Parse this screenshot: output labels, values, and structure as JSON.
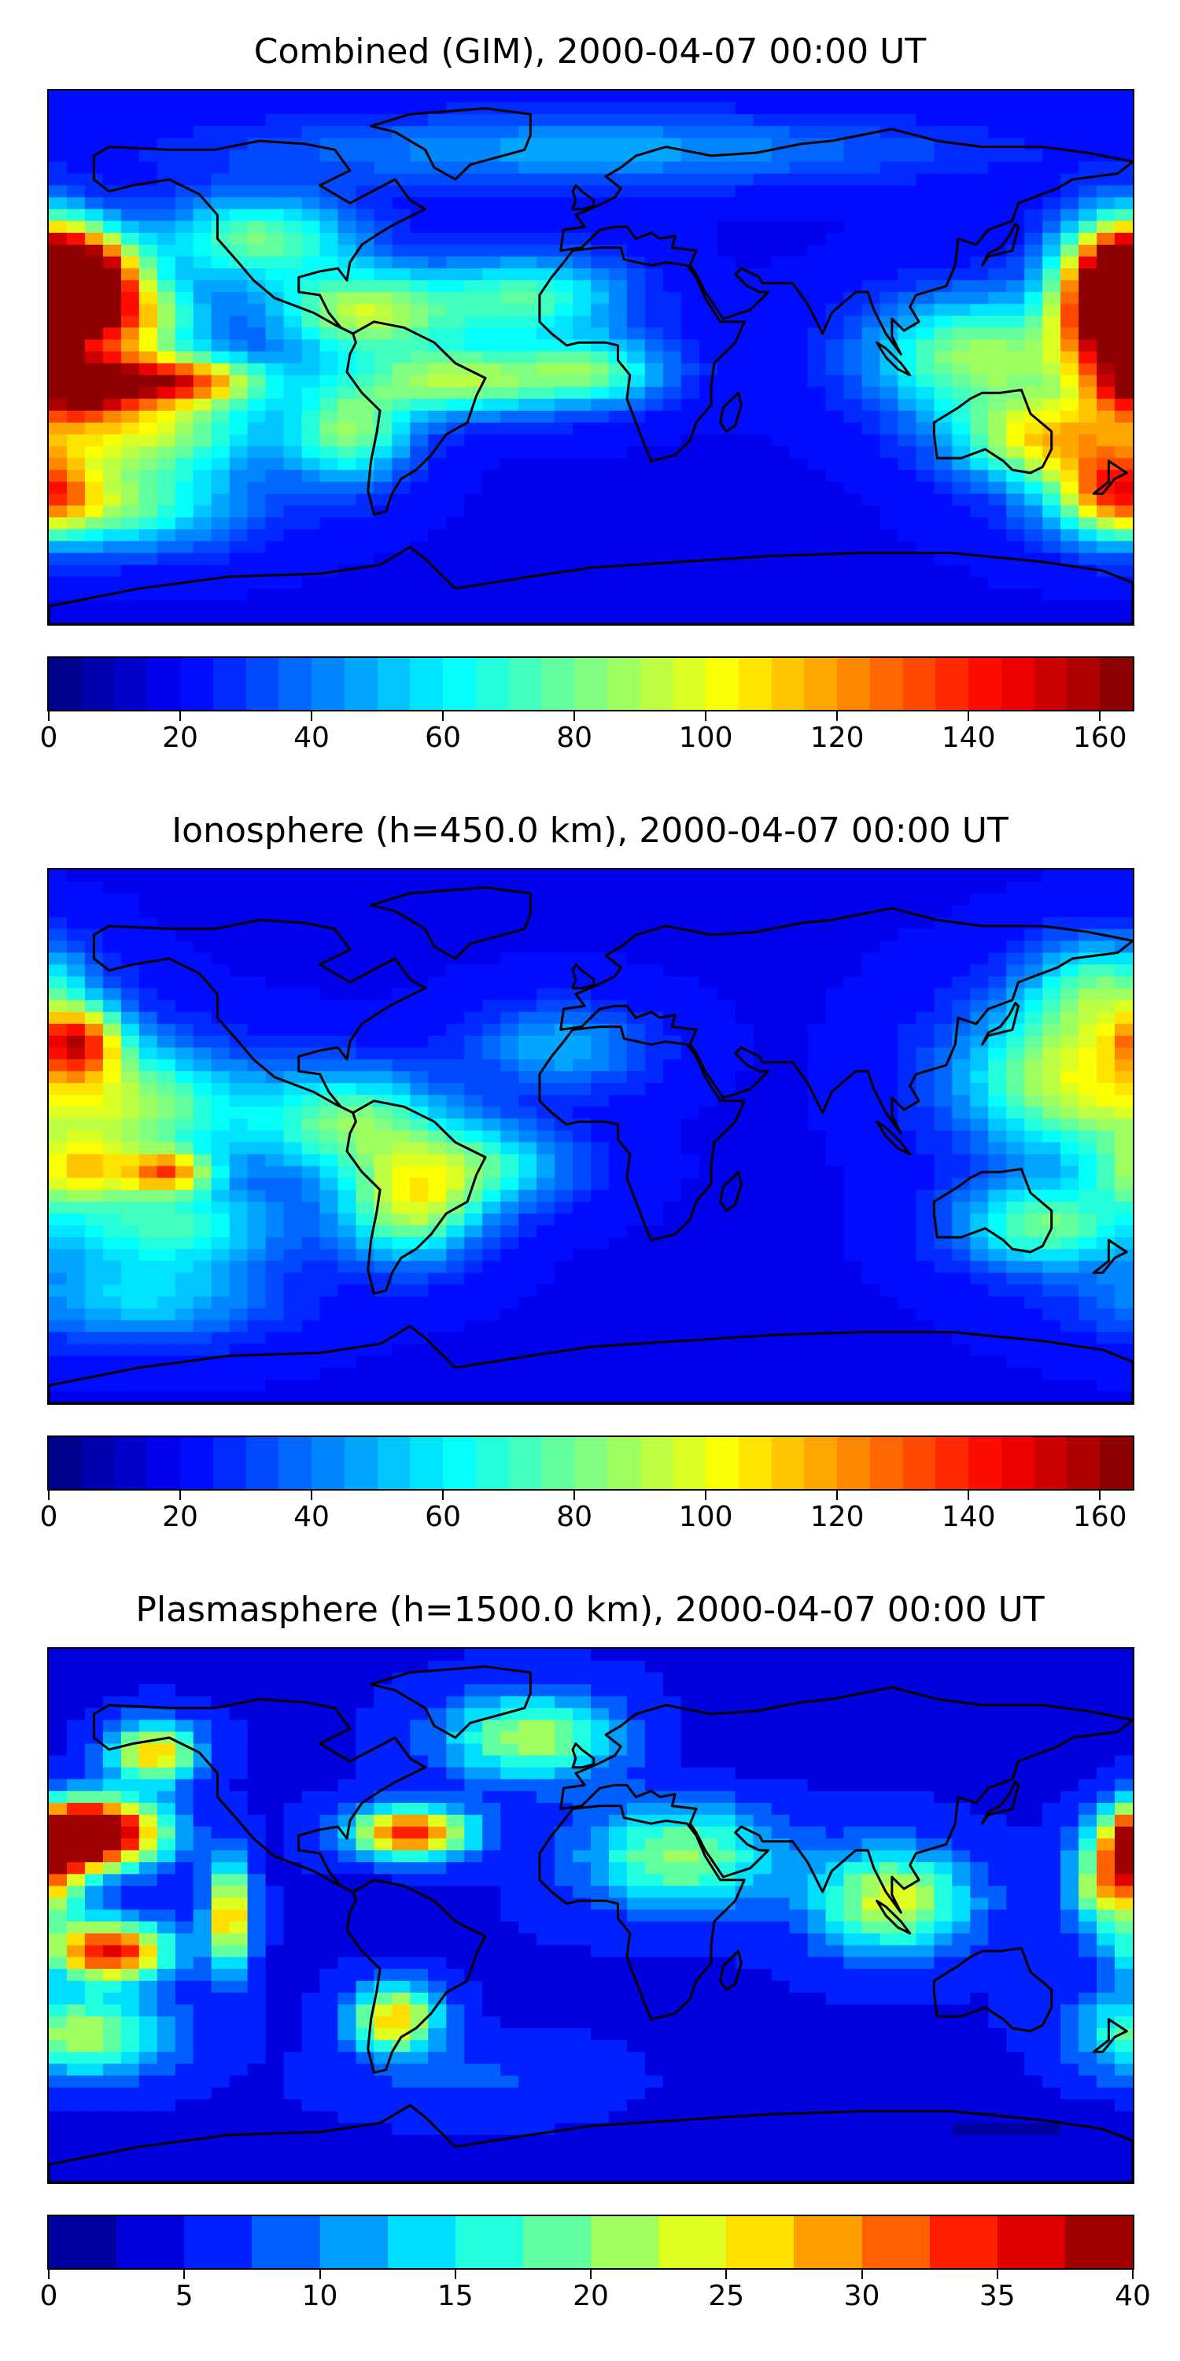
{
  "panels": [
    {
      "title": "Combined (GIM), 2000-04-07 00:00 UT",
      "colorbar": {
        "ticks": [
          "0",
          "20",
          "40",
          "60",
          "80",
          "100",
          "120",
          "140",
          "160"
        ],
        "min": 0,
        "max": 165,
        "levels": 33
      },
      "blobs": [
        {
          "lon": -170,
          "lat": 28,
          "value": 155,
          "sx": 14,
          "sy": 10
        },
        {
          "lon": -158,
          "lat": 12,
          "value": 115,
          "sx": 18,
          "sy": 10
        },
        {
          "lon": -140,
          "lat": -8,
          "value": 130,
          "sx": 22,
          "sy": 6
        },
        {
          "lon": -172,
          "lat": -10,
          "value": 118,
          "sx": 14,
          "sy": 8
        },
        {
          "lon": -150,
          "lat": -25,
          "value": 92,
          "sx": 28,
          "sy": 10
        },
        {
          "lon": -110,
          "lat": 40,
          "value": 80,
          "sx": 22,
          "sy": 10
        },
        {
          "lon": -75,
          "lat": 15,
          "value": 92,
          "sx": 22,
          "sy": 10
        },
        {
          "lon": -80,
          "lat": -25,
          "value": 80,
          "sx": 14,
          "sy": 12
        },
        {
          "lon": -45,
          "lat": -8,
          "value": 88,
          "sx": 22,
          "sy": 8
        },
        {
          "lon": -20,
          "lat": 20,
          "value": 72,
          "sx": 22,
          "sy": 10
        },
        {
          "lon": 0,
          "lat": -5,
          "value": 75,
          "sx": 18,
          "sy": 8
        },
        {
          "lon": 130,
          "lat": 0,
          "value": 88,
          "sx": 26,
          "sy": 14
        },
        {
          "lon": 176,
          "lat": 28,
          "value": 130,
          "sx": 14,
          "sy": 14
        },
        {
          "lon": 172,
          "lat": 10,
          "value": 112,
          "sx": 12,
          "sy": 14
        },
        {
          "lon": 150,
          "lat": -28,
          "value": 95,
          "sx": 20,
          "sy": 10
        },
        {
          "lon": 175,
          "lat": -45,
          "value": 100,
          "sx": 14,
          "sy": 10
        },
        {
          "lon": -160,
          "lat": -50,
          "value": 78,
          "sx": 30,
          "sy": 10
        },
        {
          "lon": 0,
          "lat": 70,
          "value": 48,
          "sx": 80,
          "sy": 8
        }
      ]
    },
    {
      "title": "Ionosphere  (h=450.0 km), 2000-04-07 00:00 UT",
      "colorbar": {
        "ticks": [
          "0",
          "20",
          "40",
          "60",
          "80",
          "100",
          "120",
          "140",
          "160"
        ],
        "min": 0,
        "max": 165,
        "levels": 33
      },
      "blobs": [
        {
          "lon": -170,
          "lat": 32,
          "value": 105,
          "sx": 10,
          "sy": 8
        },
        {
          "lon": -150,
          "lat": 10,
          "value": 80,
          "sx": 26,
          "sy": 14
        },
        {
          "lon": -140,
          "lat": -12,
          "value": 100,
          "sx": 10,
          "sy": 5
        },
        {
          "lon": -170,
          "lat": -12,
          "value": 85,
          "sx": 14,
          "sy": 8
        },
        {
          "lon": -140,
          "lat": -30,
          "value": 70,
          "sx": 26,
          "sy": 10
        },
        {
          "lon": -80,
          "lat": 5,
          "value": 80,
          "sx": 22,
          "sy": 12
        },
        {
          "lon": -60,
          "lat": -25,
          "value": 85,
          "sx": 16,
          "sy": 12
        },
        {
          "lon": -40,
          "lat": -10,
          "value": 70,
          "sx": 22,
          "sy": 10
        },
        {
          "lon": -10,
          "lat": 30,
          "value": 50,
          "sx": 20,
          "sy": 10
        },
        {
          "lon": 160,
          "lat": 20,
          "value": 92,
          "sx": 26,
          "sy": 18
        },
        {
          "lon": 150,
          "lat": -30,
          "value": 78,
          "sx": 20,
          "sy": 10
        },
        {
          "lon": -150,
          "lat": -55,
          "value": 55,
          "sx": 30,
          "sy": 10
        },
        {
          "lon": 170,
          "lat": 50,
          "value": 68,
          "sx": 16,
          "sy": 12
        }
      ]
    },
    {
      "title": "Plasmasphere (h=1500.0 km), 2000-04-07 00:00 UT",
      "colorbar": {
        "ticks": [
          "0",
          "5",
          "10",
          "15",
          "20",
          "25",
          "30",
          "35",
          "40"
        ],
        "min": 0,
        "max": 40,
        "levels": 16
      },
      "blobs": [
        {
          "lon": -160,
          "lat": 28,
          "value": 38,
          "sx": 14,
          "sy": 8
        },
        {
          "lon": -175,
          "lat": 26,
          "value": 36,
          "sx": 10,
          "sy": 8
        },
        {
          "lon": -160,
          "lat": -12,
          "value": 36,
          "sx": 14,
          "sy": 7
        },
        {
          "lon": -120,
          "lat": 0,
          "value": 30,
          "sx": 5,
          "sy": 12
        },
        {
          "lon": -60,
          "lat": 28,
          "value": 34,
          "sx": 14,
          "sy": 6
        },
        {
          "lon": -145,
          "lat": 55,
          "value": 28,
          "sx": 10,
          "sy": 7
        },
        {
          "lon": -65,
          "lat": -35,
          "value": 28,
          "sx": 10,
          "sy": 8
        },
        {
          "lon": -70,
          "lat": 0,
          "value": 3,
          "sx": 12,
          "sy": 8
        },
        {
          "lon": -15,
          "lat": 0,
          "value": 5,
          "sx": 10,
          "sy": 7
        },
        {
          "lon": 60,
          "lat": 60,
          "value": 3,
          "sx": 26,
          "sy": 8
        },
        {
          "lon": 160,
          "lat": -45,
          "value": 4,
          "sx": 18,
          "sy": 8
        },
        {
          "lon": 140,
          "lat": -72,
          "value": 2,
          "sx": 30,
          "sy": 6
        },
        {
          "lon": -40,
          "lat": -55,
          "value": 8,
          "sx": 26,
          "sy": 8
        },
        {
          "lon": 175,
          "lat": 10,
          "value": 30,
          "sx": 10,
          "sy": 10
        },
        {
          "lon": 100,
          "lat": 5,
          "value": 24,
          "sx": 18,
          "sy": 12
        },
        {
          "lon": 30,
          "lat": 20,
          "value": 21,
          "sx": 22,
          "sy": 12
        },
        {
          "lon": -170,
          "lat": -40,
          "value": 22,
          "sx": 20,
          "sy": 10
        },
        {
          "lon": -20,
          "lat": 60,
          "value": 22,
          "sx": 20,
          "sy": 10
        }
      ]
    }
  ]
}
